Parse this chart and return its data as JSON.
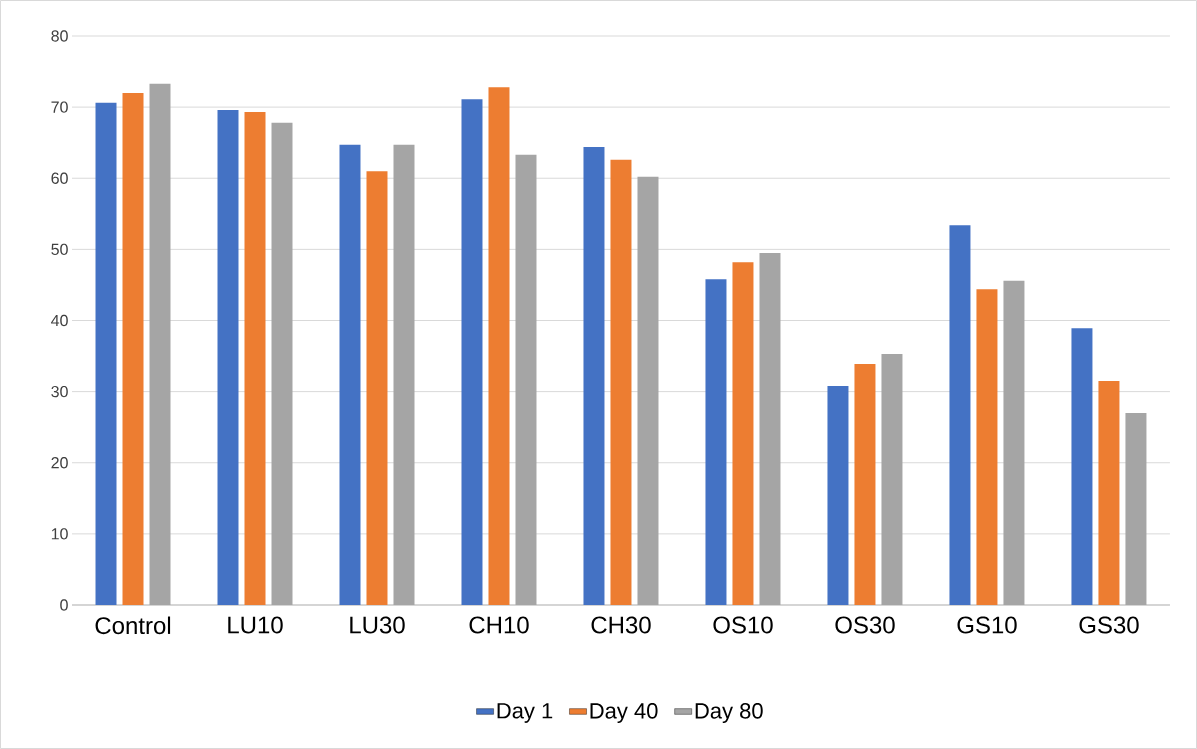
{
  "chart_data": {
    "type": "bar",
    "categories": [
      "Control",
      "LU10",
      "LU30",
      "CH10",
      "CH30",
      "OS10",
      "OS30",
      "GS10",
      "GS30"
    ],
    "series": [
      {
        "name": "Day 1",
        "color": "#4472c4",
        "values": [
          70.6,
          69.6,
          64.7,
          71.1,
          64.4,
          45.8,
          30.8,
          53.4,
          38.9
        ]
      },
      {
        "name": "Day 40",
        "color": "#ed7d31",
        "values": [
          72.0,
          69.3,
          61.0,
          72.8,
          62.6,
          48.2,
          33.9,
          44.4,
          31.5
        ]
      },
      {
        "name": "Day 80",
        "color": "#a5a5a5",
        "values": [
          73.3,
          67.8,
          64.7,
          63.3,
          60.2,
          49.5,
          35.3,
          45.6,
          27.0
        ]
      }
    ],
    "ylim": [
      0,
      80
    ],
    "yticks": [
      0,
      10,
      20,
      30,
      40,
      50,
      60,
      70,
      80
    ],
    "grid": "y",
    "legend": "bottom"
  }
}
